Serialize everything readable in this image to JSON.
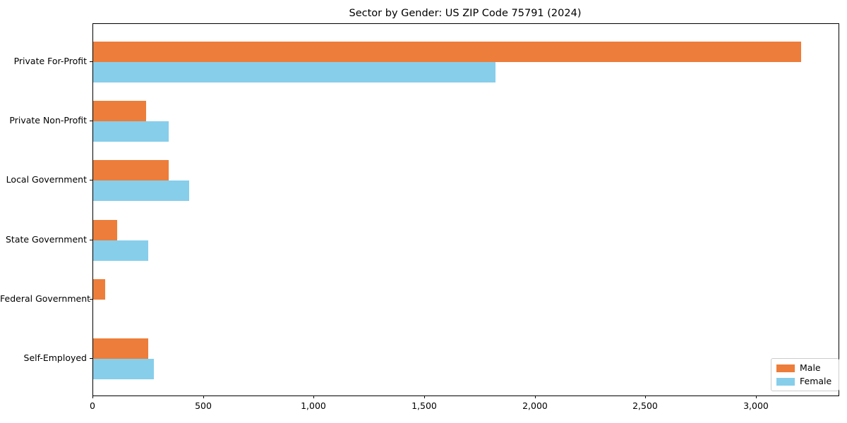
{
  "chart_data": {
    "type": "bar",
    "orientation": "horizontal",
    "title": "Sector by Gender: US ZIP Code 75791 (2024)",
    "categories": [
      "Private For-Profit",
      "Private Non-Profit",
      "Local Government",
      "State Government",
      "Federal Government",
      "Self-Employed"
    ],
    "series": [
      {
        "name": "Male",
        "color": "#ED7D3A",
        "values": [
          3200,
          240,
          340,
          110,
          55,
          250
        ]
      },
      {
        "name": "Female",
        "color": "#87CEEB",
        "values": [
          1820,
          340,
          435,
          250,
          0,
          275
        ]
      }
    ],
    "xlabel": "",
    "ylabel": "",
    "xlim": [
      0,
      3370
    ],
    "xticks": [
      0,
      500,
      1000,
      1500,
      2000,
      2500,
      3000
    ],
    "xtick_labels": [
      "0",
      "500",
      "1,000",
      "1,500",
      "2,000",
      "2,500",
      "3,000"
    ],
    "legend_position": "lower right",
    "grid": false,
    "colors": {
      "axis": "#000000",
      "legend_border": "#cccccc",
      "background": "#ffffff"
    }
  }
}
